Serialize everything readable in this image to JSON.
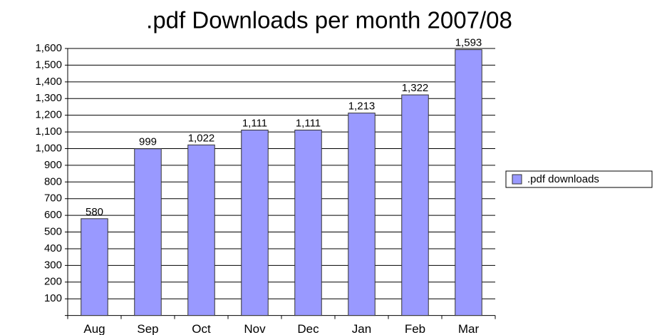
{
  "chart_data": {
    "type": "bar",
    "title": ".pdf Downloads per month 2007/08",
    "categories": [
      "Aug",
      "Sep",
      "Oct",
      "Nov",
      "Dec",
      "Jan",
      "Feb",
      "Mar"
    ],
    "series": [
      {
        "name": ".pdf downloads",
        "color": "#9999ff",
        "values": [
          580,
          999,
          1022,
          1111,
          1111,
          1213,
          1322,
          1593
        ],
        "value_labels": [
          "580",
          "999",
          "1,022",
          "1,111",
          "1,111",
          "1,213",
          "1,322",
          "1,593"
        ]
      }
    ],
    "ylim": [
      0,
      1600
    ],
    "yticks": [
      100,
      200,
      300,
      400,
      500,
      600,
      700,
      800,
      900,
      {
        "value": 1000,
        "label": "1,000"
      },
      {
        "value": 1100,
        "label": "1,100"
      },
      {
        "value": 1200,
        "label": "1,200"
      },
      {
        "value": 1300,
        "label": "1,300"
      },
      {
        "value": 1400,
        "label": "1,400"
      },
      {
        "value": 1500,
        "label": "1,500"
      },
      {
        "value": 1600,
        "label": "1,600"
      }
    ],
    "grid": true,
    "legend": "right"
  }
}
